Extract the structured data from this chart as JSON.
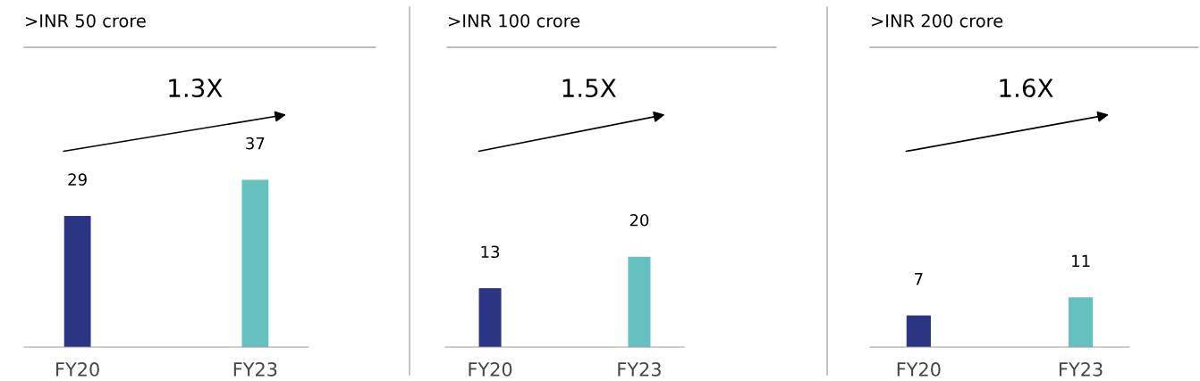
{
  "chart_data": [
    {
      "type": "bar",
      "title": ">INR 50 crore",
      "categories": [
        "FY20",
        "FY23"
      ],
      "values": [
        29,
        37
      ],
      "colors": [
        "#2b3584",
        "#66c0c0"
      ],
      "data_labels": true,
      "tick_labels": "x",
      "grid": false,
      "annotations": [
        "1.3X"
      ]
    },
    {
      "type": "bar",
      "title": ">INR 100 crore",
      "categories": [
        "FY20",
        "FY23"
      ],
      "values": [
        13,
        20
      ],
      "colors": [
        "#2b3584",
        "#66c0c0"
      ],
      "data_labels": true,
      "tick_labels": "x",
      "grid": false,
      "annotations": [
        "1.5X"
      ]
    },
    {
      "type": "bar",
      "title": ">INR 200 crore",
      "categories": [
        "FY20",
        "FY23"
      ],
      "values": [
        7,
        11
      ],
      "colors": [
        "#2b3584",
        "#66c0c0"
      ],
      "data_labels": true,
      "tick_labels": "x",
      "grid": false,
      "annotations": [
        "1.6X"
      ]
    }
  ]
}
